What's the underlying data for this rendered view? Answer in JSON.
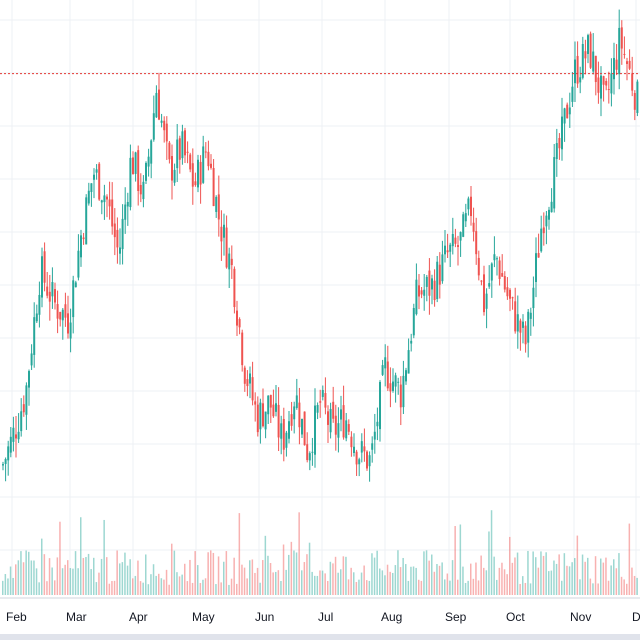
{
  "chart_data": {
    "type": "candlestick",
    "x_axis": {
      "labels": [
        "Feb",
        "Mar",
        "Apr",
        "May",
        "Jun",
        "Jul",
        "Aug",
        "Sep",
        "Oct",
        "Nov",
        "Dec"
      ]
    },
    "y_axis": {
      "visible": false,
      "ylim": [
        0,
        110
      ]
    },
    "grid": true,
    "reference_line": {
      "value": 95,
      "style": "dotted",
      "color": "#e53935"
    },
    "colors": {
      "up": "#26a69a",
      "down": "#ef5350",
      "background": "#ffffff",
      "grid": "#eef0f4"
    },
    "series": [
      {
        "kind": "candles",
        "anchors": [
          [
            "Feb",
            20
          ],
          [
            "Feb",
            30
          ],
          [
            "Feb",
            55
          ],
          [
            "Feb",
            48
          ],
          [
            "Mar",
            45
          ],
          [
            "Mar",
            62
          ],
          [
            "Mar",
            75
          ],
          [
            "Mar",
            70
          ],
          [
            "Mar",
            58
          ],
          [
            "Apr",
            78
          ],
          [
            "Apr",
            70
          ],
          [
            "Apr",
            92
          ],
          [
            "Apr",
            75
          ],
          [
            "Apr",
            80
          ],
          [
            "May",
            72
          ],
          [
            "May",
            80
          ],
          [
            "May",
            65
          ],
          [
            "May",
            55
          ],
          [
            "May",
            35
          ],
          [
            "Jun",
            25
          ],
          [
            "Jun",
            28
          ],
          [
            "Jun",
            20
          ],
          [
            "Jun",
            30
          ],
          [
            "Jun",
            18
          ],
          [
            "Jul",
            28
          ],
          [
            "Jul",
            22
          ],
          [
            "Jul",
            25
          ],
          [
            "Jul",
            18
          ],
          [
            "Jul",
            16
          ],
          [
            "Aug",
            35
          ],
          [
            "Aug",
            30
          ],
          [
            "Aug",
            50
          ],
          [
            "Aug",
            52
          ],
          [
            "Sep",
            58
          ],
          [
            "Sep",
            60
          ],
          [
            "Sep",
            68
          ],
          [
            "Sep",
            48
          ],
          [
            "Sep",
            58
          ],
          [
            "Oct",
            48
          ],
          [
            "Oct",
            40
          ],
          [
            "Oct",
            65
          ],
          [
            "Oct",
            78
          ],
          [
            "Nov",
            95
          ],
          [
            "Nov",
            100
          ],
          [
            "Nov",
            88
          ],
          [
            "Nov",
            102
          ],
          [
            "Dec",
            85
          ],
          [
            "Dec",
            80
          ]
        ]
      },
      {
        "kind": "volume",
        "relative_level": "low"
      }
    ]
  }
}
